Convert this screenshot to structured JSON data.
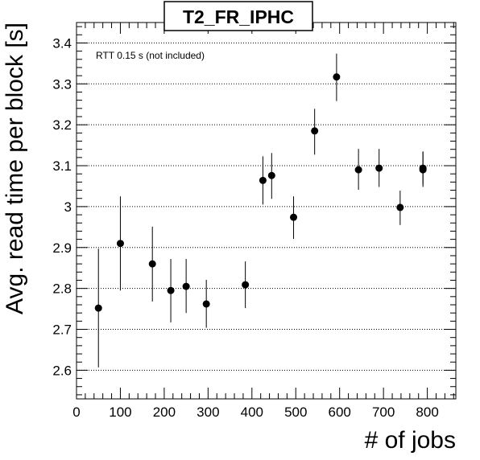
{
  "chart_data": {
    "type": "scatter",
    "title": "T2_FR_IPHC",
    "annotation": "RTT 0.15 s (not included)",
    "xlabel": "# of jobs",
    "ylabel": "Avg. read time per block [s]",
    "xlim": [
      0,
      865
    ],
    "ylim": [
      2.53,
      3.45
    ],
    "x_ticks": [
      0,
      100,
      200,
      300,
      400,
      500,
      600,
      700,
      800
    ],
    "x_tick_labels": [
      "0",
      "100",
      "200",
      "300",
      "400",
      "500",
      "600",
      "700",
      "800"
    ],
    "y_ticks": [
      2.6,
      2.7,
      2.8,
      2.9,
      3.0,
      3.1,
      3.2,
      3.3,
      3.4
    ],
    "y_tick_labels": [
      "2.6",
      "2.7",
      "2.8",
      "2.9",
      "3",
      "3.1",
      "3.2",
      "3.3",
      "3.4"
    ],
    "grid": "horizontal dotted",
    "points": [
      {
        "x": 50,
        "y": 2.752,
        "ylow": 2.607,
        "yhigh": 2.897
      },
      {
        "x": 100,
        "y": 2.91,
        "ylow": 2.795,
        "yhigh": 3.025
      },
      {
        "x": 173,
        "y": 2.86,
        "ylow": 2.768,
        "yhigh": 2.951
      },
      {
        "x": 215,
        "y": 2.795,
        "ylow": 2.717,
        "yhigh": 2.872
      },
      {
        "x": 250,
        "y": 2.805,
        "ylow": 2.74,
        "yhigh": 2.872
      },
      {
        "x": 296,
        "y": 2.762,
        "ylow": 2.704,
        "yhigh": 2.821
      },
      {
        "x": 385,
        "y": 2.809,
        "ylow": 2.752,
        "yhigh": 2.866
      },
      {
        "x": 425,
        "y": 3.064,
        "ylow": 3.005,
        "yhigh": 3.123
      },
      {
        "x": 445,
        "y": 3.076,
        "ylow": 3.019,
        "yhigh": 3.131
      },
      {
        "x": 495,
        "y": 2.974,
        "ylow": 2.921,
        "yhigh": 3.025
      },
      {
        "x": 543,
        "y": 3.185,
        "ylow": 3.127,
        "yhigh": 3.239
      },
      {
        "x": 593,
        "y": 3.317,
        "ylow": 3.258,
        "yhigh": 3.374
      },
      {
        "x": 643,
        "y": 3.09,
        "ylow": 3.041,
        "yhigh": 3.141
      },
      {
        "x": 690,
        "y": 3.094,
        "ylow": 3.048,
        "yhigh": 3.141
      },
      {
        "x": 738,
        "y": 2.998,
        "ylow": 2.955,
        "yhigh": 3.039
      },
      {
        "x": 790,
        "y": 3.09,
        "ylow": 3.048,
        "yhigh": 3.135
      },
      {
        "x": 790,
        "y": 3.094,
        "ylow": 3.054,
        "yhigh": 3.133
      }
    ]
  }
}
